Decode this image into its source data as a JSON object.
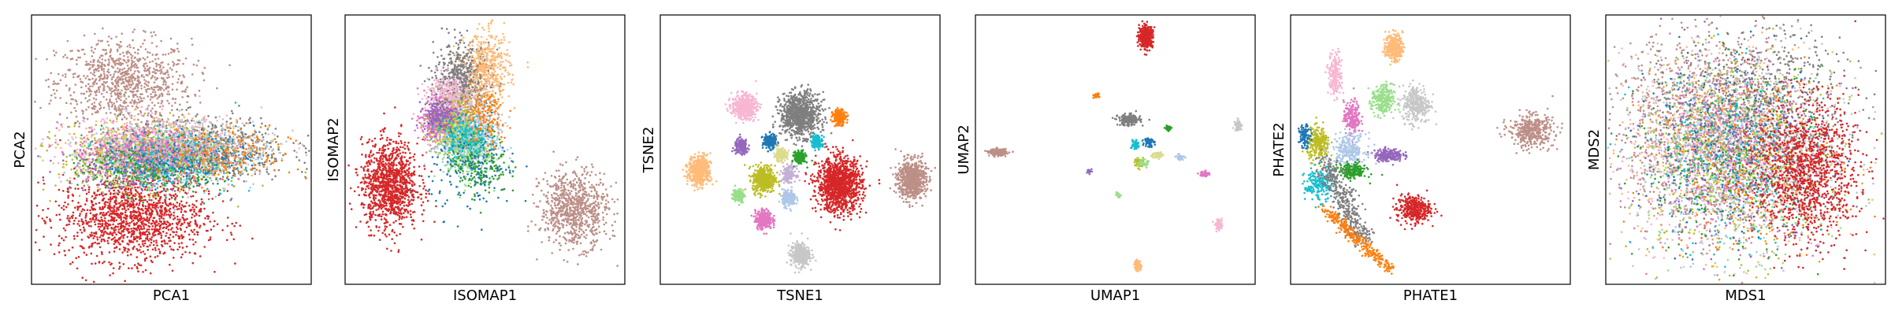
{
  "chart_data": [
    {
      "type": "scatter",
      "xlabel": "PCA1",
      "ylabel": "PCA2",
      "grid": false,
      "ticks": "none",
      "clusters": [
        {
          "color": "#bc8f87",
          "x": 0.33,
          "y": 0.75,
          "spread_x": 0.12,
          "spread_y": 0.08,
          "n": 900
        },
        {
          "color": "#d62728",
          "x": 0.36,
          "y": 0.25,
          "spread_x": 0.13,
          "spread_y": 0.08,
          "n": 1400
        },
        {
          "color": "#7f7f7f",
          "x": 0.62,
          "y": 0.5,
          "spread_x": 0.15,
          "spread_y": 0.06,
          "n": 700
        },
        {
          "color": "#bcbd22",
          "x": 0.38,
          "y": 0.47,
          "spread_x": 0.14,
          "spread_y": 0.06,
          "n": 500
        },
        {
          "color": "#ffbb78",
          "x": 0.45,
          "y": 0.5,
          "spread_x": 0.16,
          "spread_y": 0.06,
          "n": 500
        },
        {
          "color": "#aec7e8",
          "x": 0.5,
          "y": 0.48,
          "spread_x": 0.15,
          "spread_y": 0.06,
          "n": 450
        },
        {
          "color": "#f7b6d2",
          "x": 0.42,
          "y": 0.5,
          "spread_x": 0.15,
          "spread_y": 0.06,
          "n": 450
        },
        {
          "color": "#98df8a",
          "x": 0.4,
          "y": 0.46,
          "spread_x": 0.12,
          "spread_y": 0.05,
          "n": 350
        },
        {
          "color": "#9467bd",
          "x": 0.35,
          "y": 0.45,
          "spread_x": 0.12,
          "spread_y": 0.05,
          "n": 300
        },
        {
          "color": "#2ca02c",
          "x": 0.44,
          "y": 0.44,
          "spread_x": 0.12,
          "spread_y": 0.05,
          "n": 300
        },
        {
          "color": "#17becf",
          "x": 0.5,
          "y": 0.46,
          "spread_x": 0.12,
          "spread_y": 0.05,
          "n": 300
        },
        {
          "color": "#1f77b4",
          "x": 0.55,
          "y": 0.48,
          "spread_x": 0.12,
          "spread_y": 0.05,
          "n": 300
        },
        {
          "color": "#ff7f0e",
          "x": 0.65,
          "y": 0.48,
          "spread_x": 0.14,
          "spread_y": 0.05,
          "n": 300
        },
        {
          "color": "#e377c2",
          "x": 0.4,
          "y": 0.5,
          "spread_x": 0.12,
          "spread_y": 0.05,
          "n": 300
        },
        {
          "color": "#c7c7c7",
          "x": 0.6,
          "y": 0.52,
          "spread_x": 0.14,
          "spread_y": 0.05,
          "n": 300
        }
      ]
    },
    {
      "type": "scatter",
      "xlabel": "ISOMAP1",
      "ylabel": "ISOMAP2",
      "grid": false,
      "ticks": "none",
      "clusters": [
        {
          "color": "#d62728",
          "x": 0.16,
          "y": 0.37,
          "spread_x": 0.05,
          "spread_y": 0.08,
          "n": 1100
        },
        {
          "color": "#bc8f87",
          "x": 0.82,
          "y": 0.28,
          "spread_x": 0.06,
          "spread_y": 0.07,
          "n": 800
        },
        {
          "color": "#7f7f7f",
          "x": 0.42,
          "y": 0.75,
          "spread_x": 0.05,
          "spread_y": 0.07,
          "n": 700
        },
        {
          "color": "#ffbb78",
          "x": 0.51,
          "y": 0.8,
          "spread_x": 0.04,
          "spread_y": 0.07,
          "n": 450
        },
        {
          "color": "#f7b6d2",
          "x": 0.37,
          "y": 0.68,
          "spread_x": 0.04,
          "spread_y": 0.05,
          "n": 450
        },
        {
          "color": "#e377c2",
          "x": 0.33,
          "y": 0.6,
          "spread_x": 0.03,
          "spread_y": 0.04,
          "n": 350
        },
        {
          "color": "#c7c7c7",
          "x": 0.45,
          "y": 0.6,
          "spread_x": 0.05,
          "spread_y": 0.06,
          "n": 400
        },
        {
          "color": "#bcbd22",
          "x": 0.39,
          "y": 0.58,
          "spread_x": 0.04,
          "spread_y": 0.05,
          "n": 350
        },
        {
          "color": "#aec7e8",
          "x": 0.45,
          "y": 0.52,
          "spread_x": 0.05,
          "spread_y": 0.05,
          "n": 350
        },
        {
          "color": "#9467bd",
          "x": 0.34,
          "y": 0.63,
          "spread_x": 0.03,
          "spread_y": 0.03,
          "n": 200
        },
        {
          "color": "#98df8a",
          "x": 0.42,
          "y": 0.5,
          "spread_x": 0.05,
          "spread_y": 0.06,
          "n": 250
        },
        {
          "color": "#2ca02c",
          "x": 0.48,
          "y": 0.45,
          "spread_x": 0.05,
          "spread_y": 0.06,
          "n": 200
        },
        {
          "color": "#17becf",
          "x": 0.43,
          "y": 0.55,
          "spread_x": 0.04,
          "spread_y": 0.04,
          "n": 200
        },
        {
          "color": "#1f77b4",
          "x": 0.46,
          "y": 0.42,
          "spread_x": 0.08,
          "spread_y": 0.08,
          "n": 150
        },
        {
          "color": "#ff7f0e",
          "x": 0.5,
          "y": 0.62,
          "spread_x": 0.04,
          "spread_y": 0.06,
          "n": 150
        }
      ]
    },
    {
      "type": "scatter",
      "xlabel": "TSNE1",
      "ylabel": "TSNE2",
      "grid": false,
      "ticks": "none",
      "clusters": [
        {
          "color": "#7f7f7f",
          "x": 0.5,
          "y": 0.63,
          "spread_x": 0.035,
          "spread_y": 0.04,
          "n": 900
        },
        {
          "color": "#d62728",
          "x": 0.64,
          "y": 0.37,
          "spread_x": 0.04,
          "spread_y": 0.05,
          "n": 1200
        },
        {
          "color": "#bc8f87",
          "x": 0.9,
          "y": 0.39,
          "spread_x": 0.025,
          "spread_y": 0.035,
          "n": 700
        },
        {
          "color": "#f7b6d2",
          "x": 0.3,
          "y": 0.66,
          "spread_x": 0.022,
          "spread_y": 0.022,
          "n": 500
        },
        {
          "color": "#ffbb78",
          "x": 0.14,
          "y": 0.42,
          "spread_x": 0.02,
          "spread_y": 0.028,
          "n": 450
        },
        {
          "color": "#bcbd22",
          "x": 0.37,
          "y": 0.39,
          "spread_x": 0.02,
          "spread_y": 0.025,
          "n": 450
        },
        {
          "color": "#c7c7c7",
          "x": 0.5,
          "y": 0.11,
          "spread_x": 0.017,
          "spread_y": 0.022,
          "n": 350
        },
        {
          "color": "#e377c2",
          "x": 0.37,
          "y": 0.24,
          "spread_x": 0.015,
          "spread_y": 0.017,
          "n": 300
        },
        {
          "color": "#aec7e8",
          "x": 0.46,
          "y": 0.32,
          "spread_x": 0.012,
          "spread_y": 0.015,
          "n": 200
        },
        {
          "color": "#9467bd",
          "x": 0.29,
          "y": 0.51,
          "spread_x": 0.012,
          "spread_y": 0.014,
          "n": 200
        },
        {
          "color": "#c5b0d5",
          "x": 0.46,
          "y": 0.41,
          "spread_x": 0.012,
          "spread_y": 0.014,
          "n": 180
        },
        {
          "color": "#2ca02c",
          "x": 0.5,
          "y": 0.47,
          "spread_x": 0.01,
          "spread_y": 0.012,
          "n": 180
        },
        {
          "color": "#1f77b4",
          "x": 0.39,
          "y": 0.53,
          "spread_x": 0.012,
          "spread_y": 0.013,
          "n": 180
        },
        {
          "color": "#ff7f0e",
          "x": 0.64,
          "y": 0.62,
          "spread_x": 0.012,
          "spread_y": 0.014,
          "n": 180
        },
        {
          "color": "#17becf",
          "x": 0.56,
          "y": 0.53,
          "spread_x": 0.01,
          "spread_y": 0.012,
          "n": 150
        },
        {
          "color": "#98df8a",
          "x": 0.28,
          "y": 0.33,
          "spread_x": 0.01,
          "spread_y": 0.012,
          "n": 150
        },
        {
          "color": "#dbdb8d",
          "x": 0.43,
          "y": 0.48,
          "spread_x": 0.012,
          "spread_y": 0.012,
          "n": 150
        }
      ]
    },
    {
      "type": "scatter",
      "xlabel": "UMAP1",
      "ylabel": "UMAP2",
      "grid": false,
      "ticks": "none",
      "clusters": [
        {
          "color": "#d62728",
          "x": 0.61,
          "y": 0.92,
          "spread_x": 0.012,
          "spread_y": 0.02,
          "n": 400
        },
        {
          "color": "#bc8f87",
          "x": 0.08,
          "y": 0.49,
          "spread_x": 0.015,
          "spread_y": 0.006,
          "n": 200
        },
        {
          "color": "#7f7f7f",
          "x": 0.55,
          "y": 0.61,
          "spread_x": 0.02,
          "spread_y": 0.01,
          "n": 200
        },
        {
          "color": "#ffbb78",
          "x": 0.58,
          "y": 0.07,
          "spread_x": 0.006,
          "spread_y": 0.01,
          "n": 80
        },
        {
          "color": "#e377c2",
          "x": 0.82,
          "y": 0.41,
          "spread_x": 0.008,
          "spread_y": 0.005,
          "n": 60
        },
        {
          "color": "#f7b6d2",
          "x": 0.87,
          "y": 0.22,
          "spread_x": 0.007,
          "spread_y": 0.01,
          "n": 60
        },
        {
          "color": "#bcbd22",
          "x": 0.59,
          "y": 0.45,
          "spread_x": 0.01,
          "spread_y": 0.008,
          "n": 80
        },
        {
          "color": "#c7c7c7",
          "x": 0.94,
          "y": 0.59,
          "spread_x": 0.006,
          "spread_y": 0.01,
          "n": 60
        },
        {
          "color": "#ff7f0e",
          "x": 0.43,
          "y": 0.7,
          "spread_x": 0.006,
          "spread_y": 0.004,
          "n": 40
        },
        {
          "color": "#2ca02c",
          "x": 0.69,
          "y": 0.58,
          "spread_x": 0.006,
          "spread_y": 0.004,
          "n": 40
        },
        {
          "color": "#1f77b4",
          "x": 0.62,
          "y": 0.53,
          "spread_x": 0.008,
          "spread_y": 0.01,
          "n": 60
        },
        {
          "color": "#17becf",
          "x": 0.57,
          "y": 0.52,
          "spread_x": 0.008,
          "spread_y": 0.01,
          "n": 50
        },
        {
          "color": "#aec7e8",
          "x": 0.73,
          "y": 0.47,
          "spread_x": 0.008,
          "spread_y": 0.006,
          "n": 40
        },
        {
          "color": "#dbdb8d",
          "x": 0.65,
          "y": 0.48,
          "spread_x": 0.01,
          "spread_y": 0.006,
          "n": 60
        },
        {
          "color": "#9467bd",
          "x": 0.41,
          "y": 0.42,
          "spread_x": 0.005,
          "spread_y": 0.004,
          "n": 30
        },
        {
          "color": "#98df8a",
          "x": 0.51,
          "y": 0.33,
          "spread_x": 0.004,
          "spread_y": 0.004,
          "n": 20
        },
        {
          "color": "#98df8a",
          "x": 0.6,
          "y": 0.45,
          "spread_x": 0.008,
          "spread_y": 0.006,
          "n": 40
        }
      ]
    },
    {
      "type": "scatter",
      "xlabel": "PHATE1",
      "ylabel": "PHATE2",
      "grid": false,
      "ticks": "none",
      "clusters": [
        {
          "color": "#bc8f87",
          "x": 0.86,
          "y": 0.57,
          "spread_x": 0.04,
          "spread_y": 0.03,
          "n": 400
        },
        {
          "color": "#ffbb78",
          "x": 0.37,
          "y": 0.88,
          "spread_x": 0.015,
          "spread_y": 0.025,
          "n": 300
        },
        {
          "color": "#f7b6d2",
          "x": 0.16,
          "y": 0.78,
          "spread_x": 0.012,
          "spread_y": 0.04,
          "n": 200
        },
        {
          "color": "#98df8a",
          "x": 0.33,
          "y": 0.68,
          "spread_x": 0.02,
          "spread_y": 0.03,
          "n": 250
        },
        {
          "color": "#c7c7c7",
          "x": 0.45,
          "y": 0.67,
          "spread_x": 0.025,
          "spread_y": 0.035,
          "n": 300
        },
        {
          "color": "#d62728",
          "x": 0.44,
          "y": 0.28,
          "spread_x": 0.03,
          "spread_y": 0.025,
          "n": 350
        },
        {
          "color": "#e377c2",
          "x": 0.22,
          "y": 0.62,
          "spread_x": 0.015,
          "spread_y": 0.03,
          "n": 200
        },
        {
          "color": "#9467bd",
          "x": 0.35,
          "y": 0.48,
          "spread_x": 0.025,
          "spread_y": 0.012,
          "n": 200
        },
        {
          "color": "#bcbd22",
          "x": 0.1,
          "y": 0.52,
          "spread_x": 0.02,
          "spread_y": 0.03,
          "n": 250
        },
        {
          "color": "#aec7e8",
          "x": 0.21,
          "y": 0.5,
          "spread_x": 0.03,
          "spread_y": 0.03,
          "n": 250
        },
        {
          "color": "#2ca02c",
          "x": 0.22,
          "y": 0.42,
          "spread_x": 0.025,
          "spread_y": 0.015,
          "n": 200
        },
        {
          "color": "#17becf",
          "x": 0.1,
          "y": 0.37,
          "spread_x": 0.025,
          "spread_y": 0.03,
          "n": 200
        },
        {
          "color": "#1f77b4",
          "x": 0.05,
          "y": 0.55,
          "spread_x": 0.01,
          "spread_y": 0.02,
          "n": 100
        },
        {
          "color": "#7f7f7f",
          "trail": [
            [
              0.12,
              0.46
            ],
            [
              0.26,
              0.16
            ]
          ],
          "spread": 0.02,
          "n": 400
        },
        {
          "color": "#ff7f0e",
          "trail": [
            [
              0.12,
              0.28
            ],
            [
              0.36,
              0.05
            ]
          ],
          "spread": 0.012,
          "n": 300
        }
      ]
    },
    {
      "type": "scatter",
      "xlabel": "MDS1",
      "ylabel": "MDS2",
      "grid": false,
      "ticks": "none",
      "clusters": [
        {
          "color": "#bc8f87",
          "x": 0.35,
          "y": 0.6,
          "spread_x": 0.17,
          "spread_y": 0.17,
          "n": 1100
        },
        {
          "color": "#7f7f7f",
          "x": 0.55,
          "y": 0.65,
          "spread_x": 0.15,
          "spread_y": 0.16,
          "n": 800
        },
        {
          "color": "#ffbb78",
          "x": 0.45,
          "y": 0.5,
          "spread_x": 0.18,
          "spread_y": 0.18,
          "n": 600
        },
        {
          "color": "#aec7e8",
          "x": 0.45,
          "y": 0.45,
          "spread_x": 0.18,
          "spread_y": 0.18,
          "n": 500
        },
        {
          "color": "#f7b6d2",
          "x": 0.4,
          "y": 0.5,
          "spread_x": 0.17,
          "spread_y": 0.17,
          "n": 500
        },
        {
          "color": "#bcbd22",
          "x": 0.45,
          "y": 0.45,
          "spread_x": 0.18,
          "spread_y": 0.18,
          "n": 400
        },
        {
          "color": "#c7c7c7",
          "x": 0.5,
          "y": 0.55,
          "spread_x": 0.18,
          "spread_y": 0.18,
          "n": 400
        },
        {
          "color": "#98df8a",
          "x": 0.45,
          "y": 0.45,
          "spread_x": 0.17,
          "spread_y": 0.17,
          "n": 300
        },
        {
          "color": "#9467bd",
          "x": 0.45,
          "y": 0.5,
          "spread_x": 0.17,
          "spread_y": 0.17,
          "n": 300
        },
        {
          "color": "#e377c2",
          "x": 0.42,
          "y": 0.45,
          "spread_x": 0.17,
          "spread_y": 0.17,
          "n": 300
        },
        {
          "color": "#2ca02c",
          "x": 0.45,
          "y": 0.45,
          "spread_x": 0.17,
          "spread_y": 0.17,
          "n": 250
        },
        {
          "color": "#17becf",
          "x": 0.45,
          "y": 0.45,
          "spread_x": 0.17,
          "spread_y": 0.17,
          "n": 250
        },
        {
          "color": "#1f77b4",
          "x": 0.45,
          "y": 0.5,
          "spread_x": 0.17,
          "spread_y": 0.17,
          "n": 250
        },
        {
          "color": "#ff7f0e",
          "x": 0.5,
          "y": 0.45,
          "spread_x": 0.17,
          "spread_y": 0.17,
          "n": 250
        },
        {
          "color": "#d62728",
          "x": 0.72,
          "y": 0.42,
          "spread_x": 0.09,
          "spread_y": 0.13,
          "n": 1200
        }
      ]
    }
  ]
}
